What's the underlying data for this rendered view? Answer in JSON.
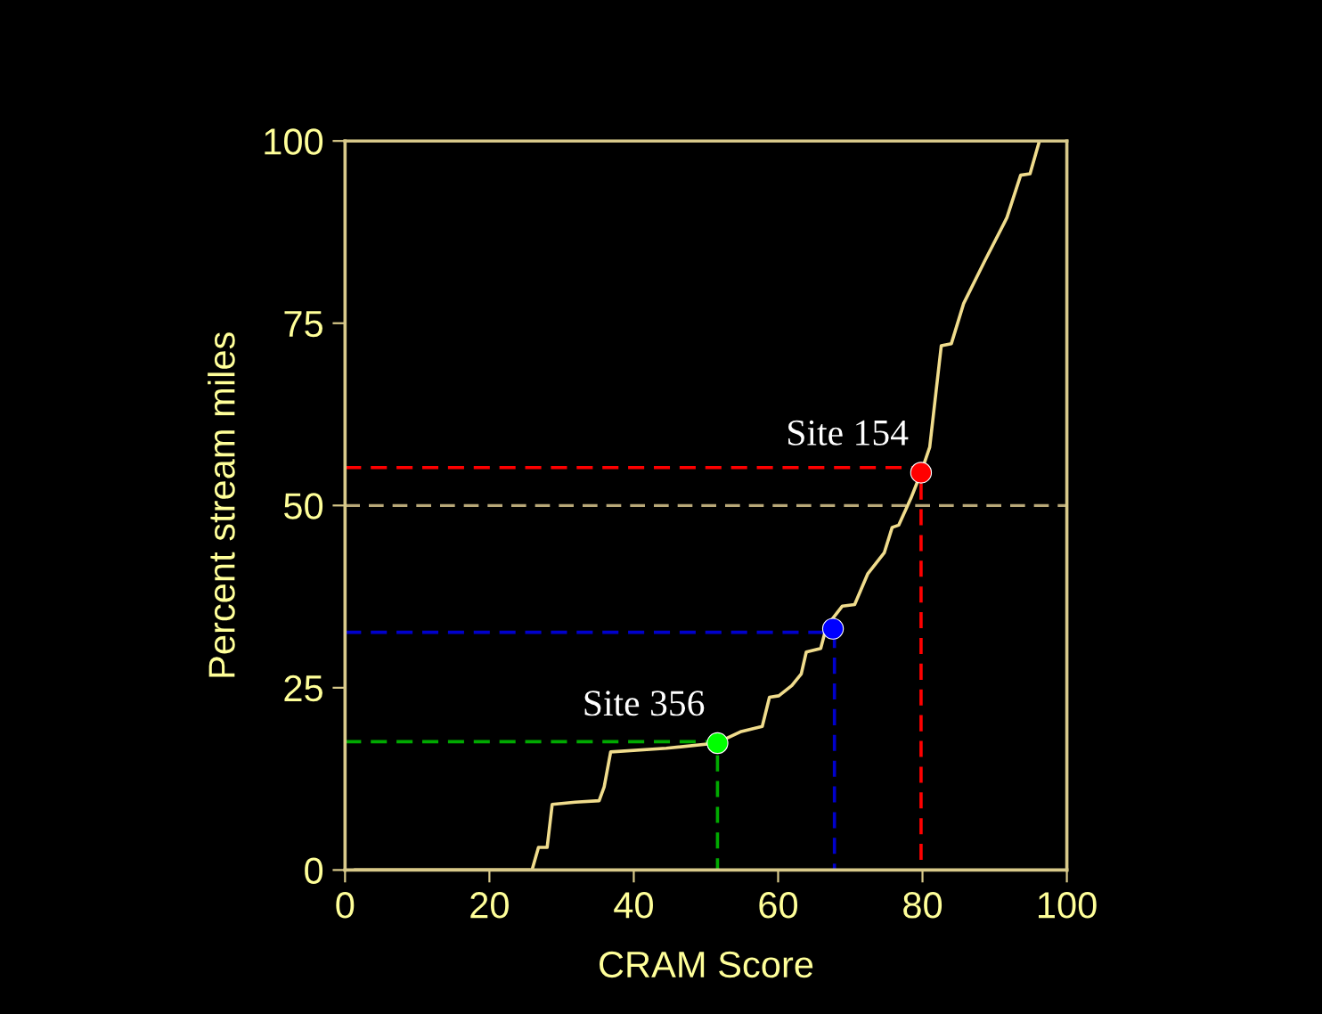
{
  "chart_data": {
    "type": "line",
    "xlabel": "CRAM Score",
    "ylabel": "Percent stream miles",
    "xlim": [
      0,
      100
    ],
    "ylim": [
      0,
      100
    ],
    "xticks": [
      0,
      20,
      40,
      60,
      80,
      100
    ],
    "yticks": [
      0,
      25,
      50,
      75,
      100
    ],
    "grid": false,
    "legend": false,
    "marker": "none",
    "line_style": "solid",
    "series": [
      {
        "type": "line",
        "color": "#ff0000",
        "line_style": "dashed",
        "x": [
          0,
          79.8,
          79.8
        ],
        "values": [
          55.2,
          55.2,
          0
        ]
      },
      {
        "type": "line",
        "color": "#0000cc",
        "line_style": "dashed",
        "x": [
          0,
          67.8,
          67.8
        ],
        "values": [
          32.6,
          32.6,
          0
        ]
      },
      {
        "type": "line",
        "color": "#00aa00",
        "line_style": "dashed",
        "x": [
          0,
          51.6,
          51.6
        ],
        "values": [
          17.6,
          17.6,
          0
        ]
      },
      {
        "color": "#f0dc8c",
        "x": [
          1.3,
          25.9,
          26.8,
          28,
          28.7,
          31.9,
          35.2,
          35.9,
          36.8,
          44.5,
          51.4,
          54.9,
          57.8,
          58.8,
          60.1,
          61.9,
          63.2,
          63.9,
          65.9,
          66.7,
          68.9,
          70.6,
          72.4,
          74.7,
          75.8,
          76.7,
          78.4,
          79.8,
          81,
          82.6,
          84,
          85.7,
          88.6,
          91.3,
          91.7,
          93.6,
          94.9,
          96.2,
          100
        ],
        "values": [
          0,
          0,
          3.1,
          3.1,
          9,
          9.3,
          9.5,
          11.4,
          16.2,
          16.7,
          17.4,
          19,
          19.7,
          23.7,
          23.9,
          25.3,
          26.9,
          29.9,
          30.4,
          33.4,
          36.2,
          36.4,
          40.6,
          43.5,
          47,
          47.3,
          51,
          54.5,
          58,
          71.9,
          72.2,
          77.7,
          83.5,
          88.7,
          89.5,
          95.3,
          95.5,
          100,
          100
        ]
      },
      {
        "type": "scatter",
        "color": "#ff0000",
        "marker": "circle",
        "x": [
          79.8
        ],
        "values": [
          54.5
        ]
      },
      {
        "type": "scatter",
        "color": "#0000ff",
        "marker": "circle",
        "x": [
          67.6
        ],
        "values": [
          33.1
        ]
      },
      {
        "type": "scatter",
        "color": "#00ff00",
        "marker": "circle",
        "x": [
          51.6
        ],
        "values": [
          17.4
        ]
      }
    ],
    "ref_lines": [
      {
        "axis": "y",
        "value": 50,
        "color": "#b8a878",
        "line_style": "dashed"
      }
    ],
    "annotations": [
      {
        "text": "Site 154",
        "x": 79.8,
        "y": 54.5
      },
      {
        "text": "Site 356",
        "x": 51.6,
        "y": 17.4
      }
    ]
  }
}
